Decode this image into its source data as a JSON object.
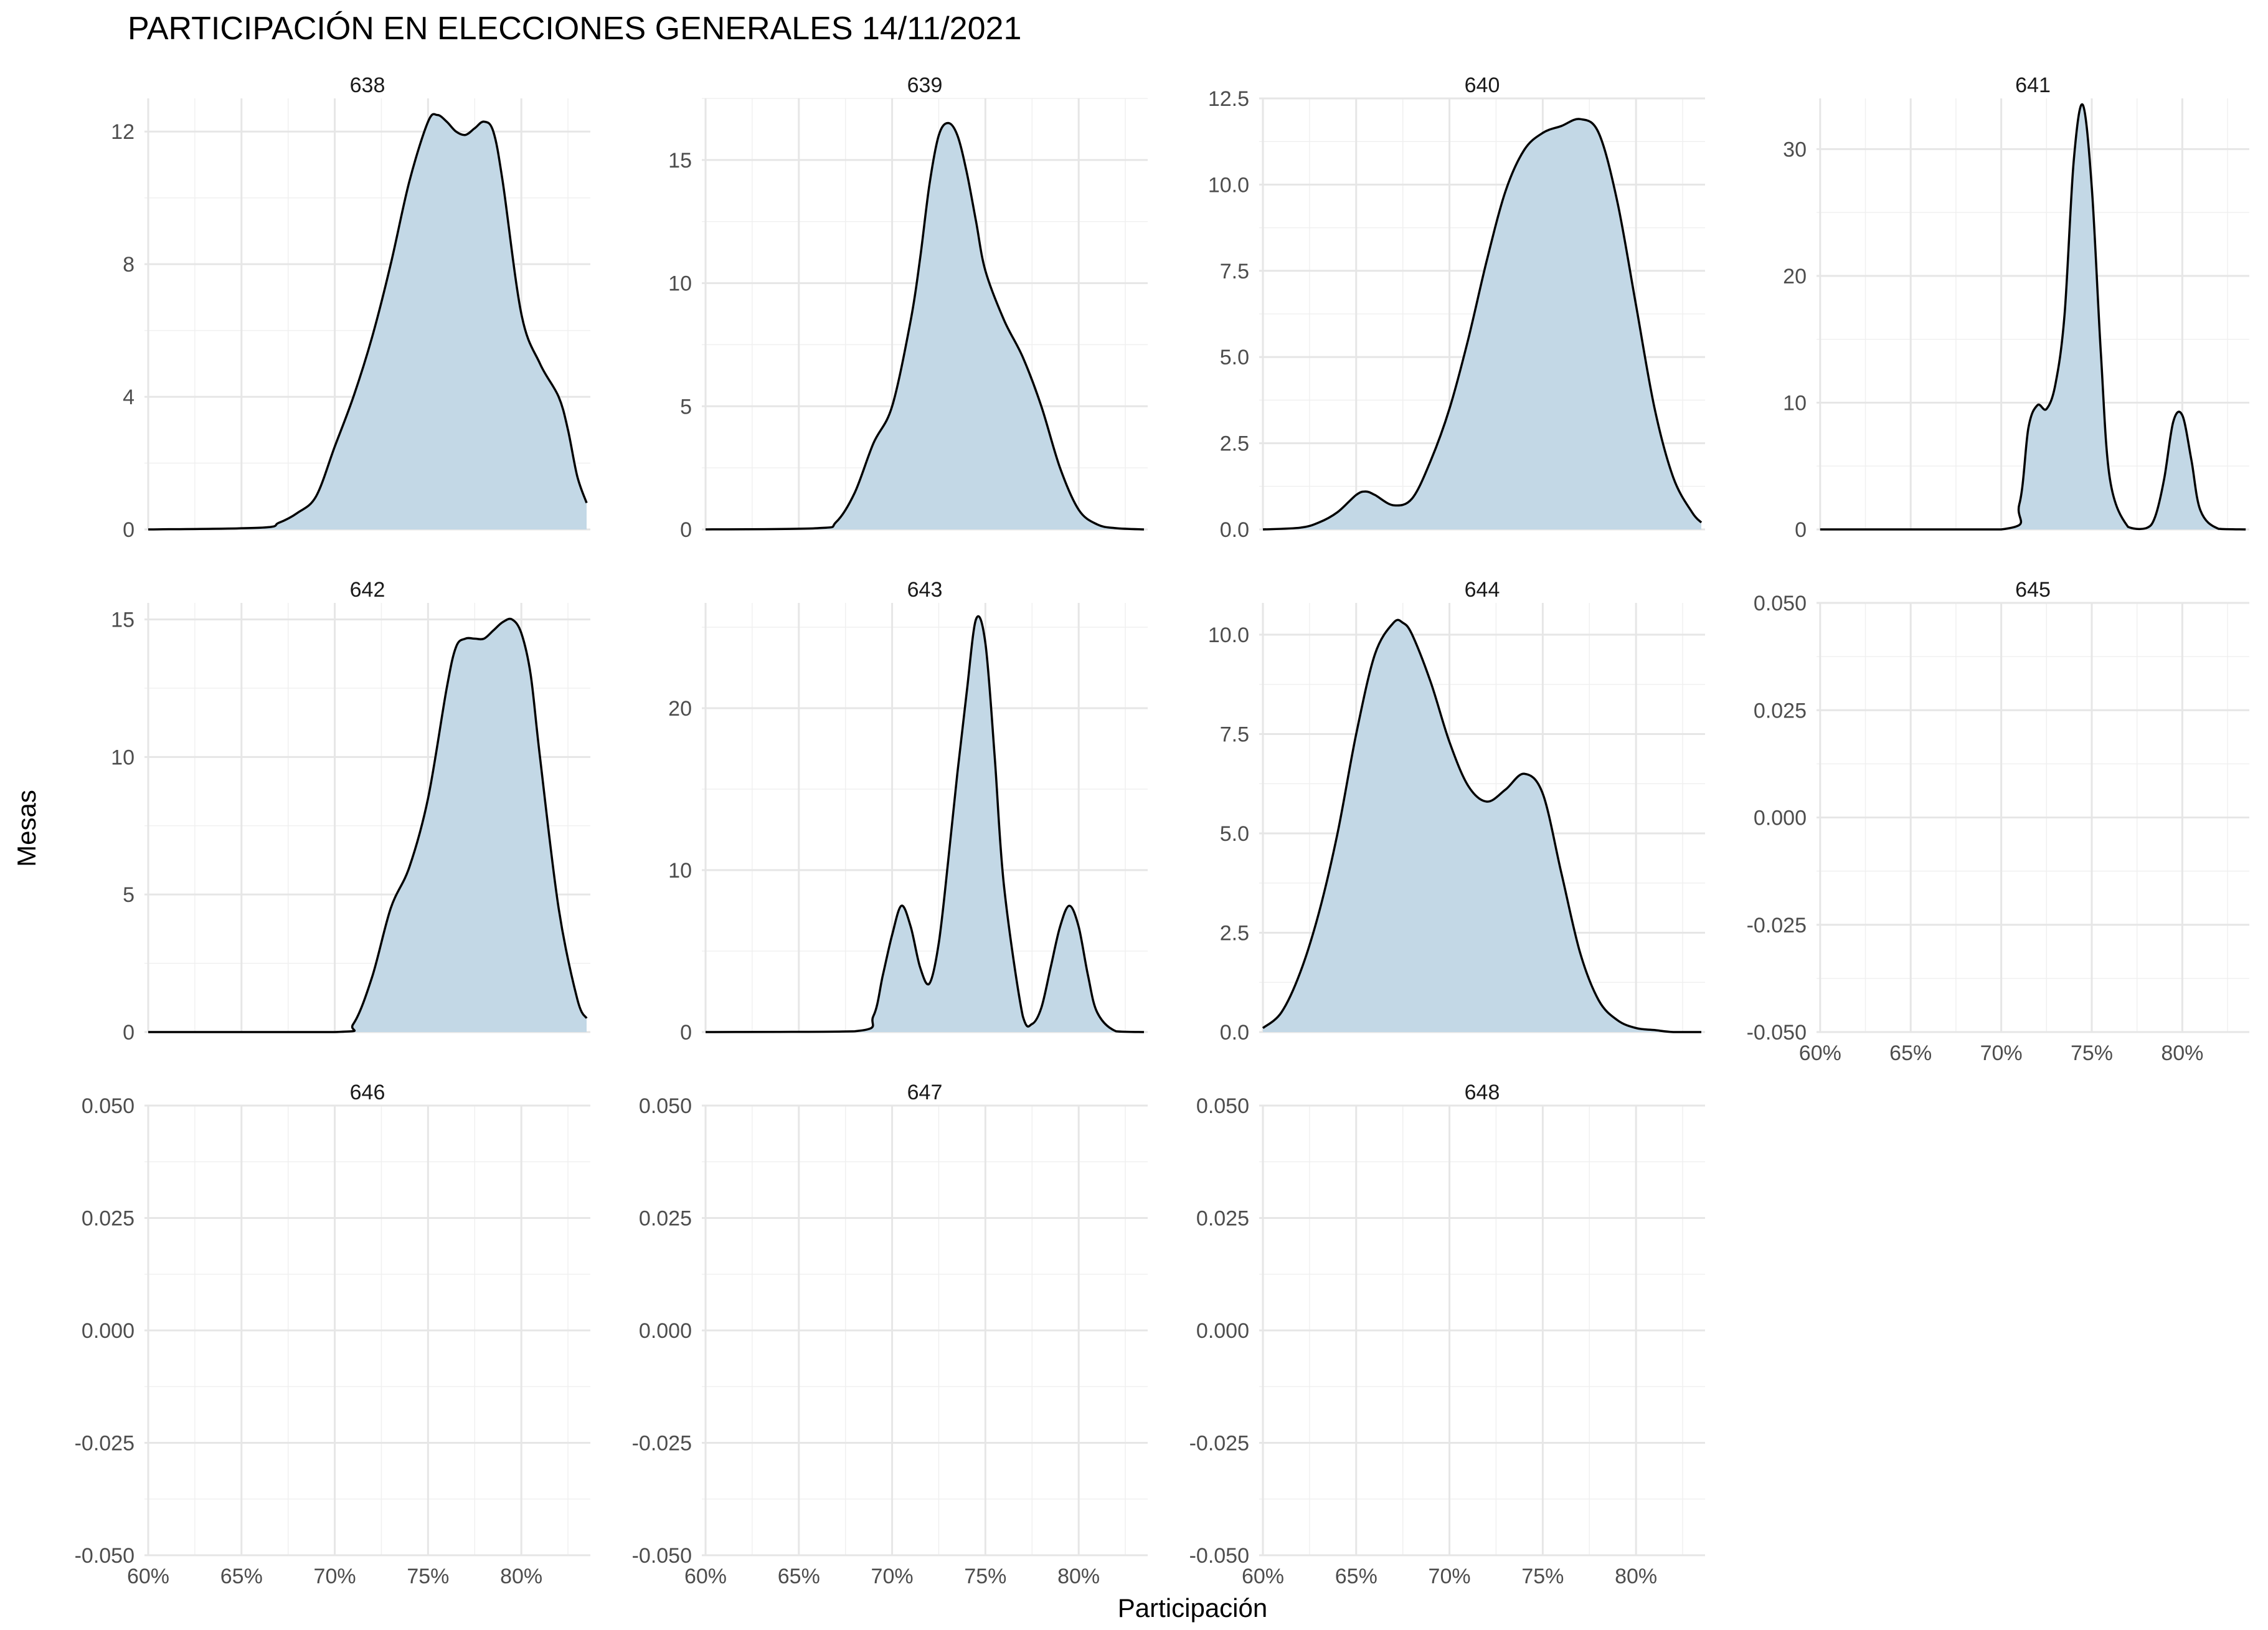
{
  "title": "PARTICIPACIÓN EN ELECCIONES GENERALES 14/11/2021",
  "xlabel": "Participación",
  "ylabel": "Mesas",
  "chart_data": {
    "type": "area",
    "title": "PARTICIPACIÓN EN ELECCIONES GENERALES 14/11/2021",
    "xlabel": "Participación",
    "ylabel": "Mesas",
    "grid": true,
    "legend": "none",
    "fill_color": "#c3d8e6",
    "line_color": "#000000",
    "xlim": [
      59.8,
      83.7
    ],
    "x_ticks": [
      60,
      65,
      70,
      75,
      80
    ],
    "x_tick_labels": [
      "60%",
      "65%",
      "70%",
      "75%",
      "80%"
    ],
    "panels": [
      {
        "name": "638",
        "ylim": [
          0,
          13.0
        ],
        "y_ticks": [
          0,
          4,
          8,
          12
        ],
        "y_tick_labels": [
          "0",
          "4",
          "8",
          "12"
        ],
        "x": [
          60,
          66,
          67,
          68,
          69,
          70,
          71,
          72,
          73,
          74,
          75,
          75.5,
          76,
          76.5,
          77,
          77.5,
          78,
          78.5,
          79,
          80,
          81,
          82,
          82.5,
          83,
          83.5
        ],
        "y": [
          0,
          0.05,
          0.2,
          0.5,
          1.0,
          2.5,
          4.0,
          5.8,
          8.0,
          10.5,
          12.3,
          12.5,
          12.3,
          12.0,
          11.9,
          12.1,
          12.3,
          12.0,
          10.5,
          6.5,
          5.0,
          4.0,
          3.0,
          1.6,
          0.8
        ]
      },
      {
        "name": "639",
        "ylim": [
          0,
          17.5
        ],
        "y_ticks": [
          0,
          5,
          10,
          15
        ],
        "y_tick_labels": [
          "0",
          "5",
          "10",
          "15"
        ],
        "x": [
          60,
          66,
          67,
          68,
          69,
          70,
          71,
          71.5,
          72,
          72.5,
          73,
          73.5,
          74,
          74.5,
          75,
          76,
          77,
          78,
          79,
          80,
          81,
          82,
          83.5
        ],
        "y": [
          0,
          0.05,
          0.3,
          1.5,
          3.5,
          5.0,
          8.5,
          11.0,
          14.0,
          16.0,
          16.5,
          16.0,
          14.5,
          12.5,
          10.5,
          8.5,
          7.0,
          5.0,
          2.5,
          0.8,
          0.2,
          0.05,
          0
        ]
      },
      {
        "name": "640",
        "ylim": [
          0,
          12.5
        ],
        "y_ticks": [
          0,
          2.5,
          5,
          7.5,
          10,
          12.5
        ],
        "y_tick_labels": [
          "0.0",
          "2.5",
          "5.0",
          "7.5",
          "10.0",
          "12.5"
        ],
        "x": [
          60,
          62,
          63,
          64,
          65,
          65.5,
          66,
          67,
          68,
          69,
          70,
          71,
          72,
          73,
          74,
          75,
          76,
          77,
          78,
          79,
          80,
          81,
          82,
          83,
          83.5
        ],
        "y": [
          0,
          0.05,
          0.2,
          0.5,
          1.0,
          1.1,
          1.0,
          0.7,
          0.9,
          2.0,
          3.5,
          5.5,
          7.8,
          9.8,
          11.0,
          11.5,
          11.7,
          11.9,
          11.5,
          9.5,
          6.5,
          3.5,
          1.5,
          0.5,
          0.2
        ]
      },
      {
        "name": "641",
        "ylim": [
          0,
          34.0
        ],
        "y_ticks": [
          0,
          10,
          20,
          30
        ],
        "y_tick_labels": [
          "0",
          "10",
          "20",
          "30"
        ],
        "x": [
          60,
          70,
          71,
          71.5,
          72,
          72.5,
          73,
          73.5,
          74,
          74.5,
          75,
          75.5,
          76,
          77,
          78,
          78.5,
          79,
          79.5,
          80,
          80.5,
          81,
          82,
          83.5
        ],
        "y": [
          0,
          0,
          2.0,
          8.0,
          9.8,
          9.5,
          11.5,
          17.0,
          29.0,
          33.5,
          27.0,
          14.0,
          4.0,
          0.2,
          0.1,
          1.0,
          4.0,
          8.5,
          9.0,
          5.5,
          1.5,
          0.05,
          0
        ]
      },
      {
        "name": "642",
        "ylim": [
          0,
          15.6
        ],
        "y_ticks": [
          0,
          5,
          10,
          15
        ],
        "y_tick_labels": [
          "0",
          "5",
          "10",
          "15"
        ],
        "x": [
          60,
          70,
          71,
          72,
          73,
          74,
          75,
          76,
          76.5,
          77,
          77.5,
          78,
          78.5,
          79,
          79.5,
          80,
          80.5,
          81,
          82,
          83,
          83.5
        ],
        "y": [
          0,
          0,
          0.3,
          2.0,
          4.5,
          6.0,
          8.5,
          12.5,
          14.0,
          14.3,
          14.3,
          14.3,
          14.6,
          14.9,
          15.0,
          14.5,
          13.0,
          10.0,
          4.5,
          1.2,
          0.5
        ]
      },
      {
        "name": "643",
        "ylim": [
          0,
          26.5
        ],
        "y_ticks": [
          0,
          10,
          20
        ],
        "y_tick_labels": [
          "0",
          "10",
          "20"
        ],
        "x": [
          60,
          68,
          69,
          69.5,
          70,
          70.5,
          71,
          71.5,
          72,
          72.5,
          73,
          73.5,
          74,
          74.5,
          75,
          75.5,
          76,
          77,
          77.5,
          78,
          78.5,
          79,
          79.5,
          80,
          80.5,
          81,
          82,
          83.5
        ],
        "y": [
          0,
          0.05,
          1.0,
          3.5,
          6.0,
          7.8,
          6.5,
          4.0,
          3.0,
          5.5,
          10.5,
          16.0,
          21.0,
          25.5,
          24.0,
          17.0,
          9.0,
          1.0,
          0.5,
          1.5,
          4.0,
          6.5,
          7.8,
          6.5,
          3.5,
          1.2,
          0.05,
          0
        ]
      },
      {
        "name": "644",
        "ylim": [
          0,
          10.8
        ],
        "y_ticks": [
          0,
          2.5,
          5,
          7.5,
          10
        ],
        "y_tick_labels": [
          "0.0",
          "2.5",
          "5.0",
          "7.5",
          "10.0"
        ],
        "x": [
          60,
          61,
          62,
          63,
          64,
          65,
          66,
          67,
          67.5,
          68,
          69,
          70,
          71,
          72,
          73,
          74,
          75,
          76,
          77,
          78,
          79,
          80,
          81,
          82,
          83.5
        ],
        "y": [
          0.1,
          0.5,
          1.5,
          3.0,
          5.0,
          7.5,
          9.5,
          10.3,
          10.3,
          10.0,
          8.8,
          7.3,
          6.2,
          5.8,
          6.1,
          6.5,
          6.0,
          4.0,
          2.0,
          0.8,
          0.3,
          0.1,
          0.05,
          0,
          0
        ]
      },
      {
        "name": "645",
        "ylim": [
          -0.05,
          0.05
        ],
        "y_ticks": [
          -0.05,
          -0.025,
          0,
          0.025,
          0.05
        ],
        "y_tick_labels": [
          "-0.050",
          "-0.025",
          "0.000",
          "0.025",
          "0.050"
        ],
        "x": [],
        "y": []
      },
      {
        "name": "646",
        "ylim": [
          -0.05,
          0.05
        ],
        "y_ticks": [
          -0.05,
          -0.025,
          0,
          0.025,
          0.05
        ],
        "y_tick_labels": [
          "-0.050",
          "-0.025",
          "0.000",
          "0.025",
          "0.050"
        ],
        "x": [],
        "y": []
      },
      {
        "name": "647",
        "ylim": [
          -0.05,
          0.05
        ],
        "y_ticks": [
          -0.05,
          -0.025,
          0,
          0.025,
          0.05
        ],
        "y_tick_labels": [
          "-0.050",
          "-0.025",
          "0.000",
          "0.025",
          "0.050"
        ],
        "x": [],
        "y": []
      },
      {
        "name": "648",
        "ylim": [
          -0.05,
          0.05
        ],
        "y_ticks": [
          -0.05,
          -0.025,
          0,
          0.025,
          0.05
        ],
        "y_tick_labels": [
          "-0.050",
          "-0.025",
          "0.000",
          "0.025",
          "0.050"
        ],
        "x": [],
        "y": []
      }
    ]
  }
}
